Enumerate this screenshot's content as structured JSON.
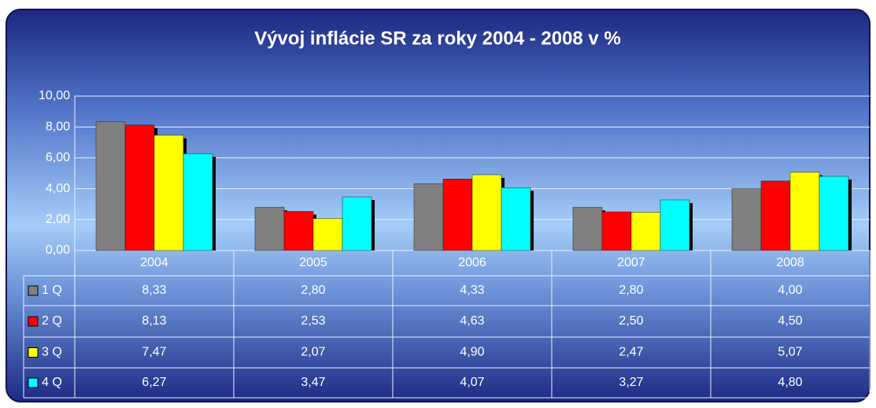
{
  "chart_data": {
    "type": "bar",
    "title": "Vývoj inflácie SR za roky 2004 - 2008 v %",
    "categories": [
      "2004",
      "2005",
      "2006",
      "2007",
      "2008"
    ],
    "series": [
      {
        "name": "1 Q",
        "color": "#808080",
        "values": [
          8.33,
          2.8,
          4.33,
          2.8,
          4.0
        ],
        "value_labels": [
          "8,33",
          "2,80",
          "4,33",
          "2,80",
          "4,00"
        ]
      },
      {
        "name": "2 Q",
        "color": "#ff0000",
        "values": [
          8.13,
          2.53,
          4.63,
          2.5,
          4.5
        ],
        "value_labels": [
          "8,13",
          "2,53",
          "4,63",
          "2,50",
          "4,50"
        ]
      },
      {
        "name": "3 Q",
        "color": "#ffff00",
        "values": [
          7.47,
          2.07,
          4.9,
          2.47,
          5.07
        ],
        "value_labels": [
          "7,47",
          "2,07",
          "4,90",
          "2,47",
          "5,07"
        ]
      },
      {
        "name": "4 Q",
        "color": "#00ffff",
        "values": [
          6.27,
          3.47,
          4.07,
          3.27,
          4.8
        ],
        "value_labels": [
          "6,27",
          "3,47",
          "4,07",
          "3,27",
          "4,80"
        ]
      }
    ],
    "ylim": [
      0,
      10
    ],
    "yticks": [
      {
        "value": 0,
        "label": "0,00"
      },
      {
        "value": 2,
        "label": "2,00"
      },
      {
        "value": 4,
        "label": "4,00"
      },
      {
        "value": 6,
        "label": "6,00"
      },
      {
        "value": 8,
        "label": "8,00"
      },
      {
        "value": 10,
        "label": "10,00"
      }
    ],
    "grid": true
  }
}
